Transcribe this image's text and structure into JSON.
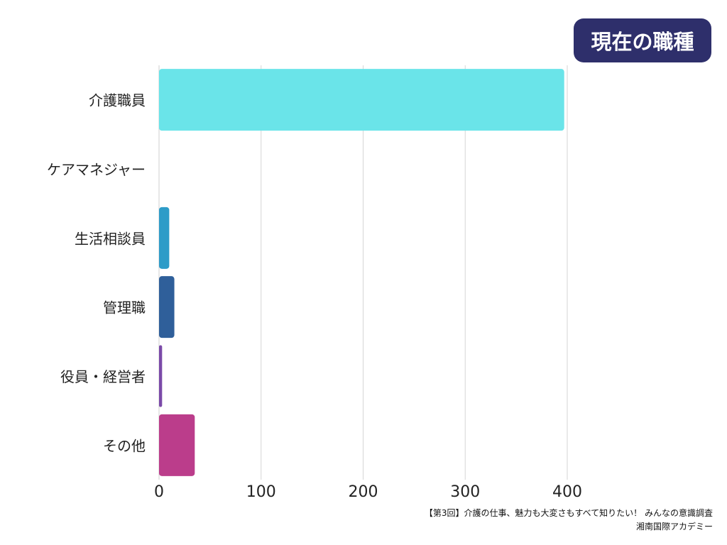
{
  "chart_data": {
    "type": "bar",
    "orientation": "horizontal",
    "title": "現在の職種",
    "categories": [
      "介護職員",
      "ケアマネジャー",
      "生活相談員",
      "管理職",
      "役員・経営者",
      "その他"
    ],
    "values": [
      397,
      0,
      10,
      15,
      3,
      35
    ],
    "colors": [
      "#6ae4e9",
      "#2e9cc8",
      "#2e9cc8",
      "#2f5f9a",
      "#7b4aa8",
      "#bb3d8b"
    ],
    "xlim": [
      0,
      400
    ],
    "xticks": [
      0,
      100,
      200,
      300,
      400
    ],
    "grid": true
  },
  "footer": {
    "line1": "【第3回】介護の仕事、魅力も大変さもすべて知りたい！ みんなの意識調査",
    "line2": "湘南国際アカデミー"
  }
}
